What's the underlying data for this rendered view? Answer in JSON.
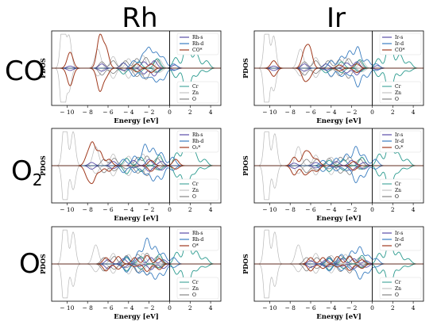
{
  "column_titles": [
    "Rh",
    "Ir"
  ],
  "row_titles": [
    {
      "main": "CO",
      "sub": ""
    },
    {
      "main": "O",
      "sub": "2"
    },
    {
      "main": "O",
      "sub": ""
    }
  ],
  "colors": {
    "metal_s": "#5a4ea8",
    "metal_d": "#3a7dc0",
    "adsorbate": "#a03a1e",
    "cr": "#2a9a8e",
    "zn": "#b8b8b8",
    "o": "#6e6e6e",
    "fermi": "#000000"
  },
  "chart_data": [
    {
      "type": "line",
      "panel": "Rh-CO",
      "xlabel": "Energy [eV]",
      "ylabel": "PDOS",
      "xlim": [
        -11.5,
        5
      ],
      "xticks": [
        -10,
        -8,
        -6,
        -4,
        -2,
        0,
        2,
        4
      ],
      "legend_top": [
        "Rh-s",
        "Rh-d",
        "CO*"
      ],
      "legend_bottom": [
        "Cr",
        "Zn",
        "O"
      ],
      "legend_top_pos": "top-right",
      "legend_bottom_pos": "bottom-right",
      "fermi_level": 0,
      "peaks": {
        "metal_s": [
          [
            -9.7,
            0.1
          ],
          [
            -6.6,
            0.2
          ],
          [
            -4.5,
            0.25
          ],
          [
            -2.5,
            0.3
          ],
          [
            -1.5,
            0.35
          ],
          [
            0.5,
            0.15
          ]
        ],
        "metal_d": [
          [
            -3.5,
            0.35
          ],
          [
            -2.6,
            0.6
          ],
          [
            -2.0,
            0.9
          ],
          [
            -1.3,
            0.7
          ],
          [
            -0.6,
            0.5
          ],
          [
            0.4,
            0.2
          ]
        ],
        "adsorbate": [
          [
            -9.7,
            0.75
          ],
          [
            -6.8,
            1.5
          ],
          [
            -6.2,
            0.9
          ],
          [
            -3.2,
            0.2
          ],
          [
            -1.8,
            0.2
          ]
        ],
        "cr": [
          [
            -4.5,
            0.25
          ],
          [
            -3.0,
            0.3
          ],
          [
            -1.2,
            0.45
          ],
          [
            0.6,
            0.5
          ],
          [
            1.7,
            1.35
          ],
          [
            2.6,
            0.7
          ],
          [
            3.6,
            0.35
          ]
        ],
        "zn": [
          [
            -10.4,
            2.5
          ],
          [
            -9.8,
            1.5
          ],
          [
            -7.0,
            0.9
          ],
          [
            -5.5,
            0.55
          ],
          [
            -4.0,
            0.45
          ],
          [
            -2.6,
            0.6
          ],
          [
            -1.0,
            0.4
          ]
        ],
        "o": [
          [
            -6.6,
            0.3
          ],
          [
            -5.5,
            0.35
          ],
          [
            -4.3,
            0.35
          ],
          [
            -3.2,
            0.45
          ],
          [
            -2.3,
            0.5
          ],
          [
            -1.3,
            0.4
          ]
        ]
      }
    },
    {
      "type": "line",
      "panel": "Ir-CO",
      "xlabel": "Energy [eV]",
      "ylabel": "PDOS",
      "xlim": [
        -11.5,
        5
      ],
      "xticks": [
        -10,
        -8,
        -6,
        -4,
        -2,
        0,
        2,
        4
      ],
      "legend_top": [
        "Ir-s",
        "Ir-d",
        "CO*"
      ],
      "legend_bottom": [
        "Cr",
        "Zn",
        "O"
      ],
      "legend_top_pos": "top-right",
      "legend_bottom_pos": "bottom-right",
      "fermi_level": 0,
      "peaks": {
        "metal_s": [
          [
            -9.6,
            0.1
          ],
          [
            -6.6,
            0.2
          ],
          [
            -4.5,
            0.2
          ],
          [
            -2.5,
            0.25
          ],
          [
            -1.5,
            0.3
          ],
          [
            0.5,
            0.12
          ]
        ],
        "metal_d": [
          [
            -4.0,
            0.35
          ],
          [
            -3.0,
            0.55
          ],
          [
            -2.2,
            0.8
          ],
          [
            -1.4,
            1.0
          ],
          [
            -0.5,
            0.4
          ],
          [
            0.4,
            0.2
          ]
        ],
        "adsorbate": [
          [
            -9.6,
            0.35
          ],
          [
            -6.6,
            0.75
          ],
          [
            -6.1,
            0.9
          ],
          [
            -3.2,
            0.15
          ],
          [
            -1.5,
            0.2
          ]
        ],
        "cr": [
          [
            -4.5,
            0.2
          ],
          [
            -3.0,
            0.3
          ],
          [
            -1.2,
            0.4
          ],
          [
            0.6,
            0.45
          ],
          [
            1.7,
            1.45
          ],
          [
            2.7,
            0.65
          ],
          [
            3.6,
            0.3
          ]
        ],
        "zn": [
          [
            -10.3,
            2.5
          ],
          [
            -9.6,
            1.5
          ],
          [
            -7.0,
            0.9
          ],
          [
            -5.5,
            0.5
          ],
          [
            -4.0,
            0.4
          ],
          [
            -2.6,
            0.5
          ],
          [
            -1.0,
            0.35
          ]
        ],
        "o": [
          [
            -6.6,
            0.3
          ],
          [
            -5.5,
            0.35
          ],
          [
            -4.3,
            0.35
          ],
          [
            -3.2,
            0.4
          ],
          [
            -2.3,
            0.45
          ],
          [
            -1.3,
            0.35
          ]
        ]
      }
    },
    {
      "type": "line",
      "panel": "Rh-O2",
      "xlabel": "Energy [eV]",
      "ylabel": "PDOS",
      "xlim": [
        -11.5,
        5
      ],
      "xticks": [
        -10,
        -8,
        -6,
        -4,
        -2,
        0,
        2,
        4
      ],
      "legend_top": [
        "Rh-s",
        "Rh-d",
        "O₂*"
      ],
      "legend_bottom": [
        "Cr",
        "Zn",
        "O"
      ],
      "legend_top_pos": "top-right",
      "legend_bottom_pos": "bottom-right",
      "fermi_level": 0,
      "peaks": {
        "metal_s": [
          [
            -7.6,
            0.15
          ],
          [
            -5.5,
            0.2
          ],
          [
            -3.5,
            0.25
          ],
          [
            -2.0,
            0.3
          ],
          [
            -0.8,
            0.2
          ]
        ],
        "metal_d": [
          [
            -4.5,
            0.3
          ],
          [
            -3.4,
            0.45
          ],
          [
            -2.4,
            1.0
          ],
          [
            -1.6,
            0.8
          ],
          [
            -0.8,
            0.6
          ],
          [
            0.3,
            0.4
          ]
        ],
        "adsorbate": [
          [
            -8.0,
            0.45
          ],
          [
            -7.5,
            1.0
          ],
          [
            -6.8,
            0.65
          ],
          [
            -5.9,
            0.3
          ],
          [
            -1.8,
            0.25
          ],
          [
            0.6,
            0.3
          ]
        ],
        "cr": [
          [
            -4.2,
            0.35
          ],
          [
            -2.8,
            0.4
          ],
          [
            -1.0,
            0.5
          ],
          [
            0.7,
            0.6
          ],
          [
            1.6,
            1.2
          ],
          [
            2.4,
            0.7
          ],
          [
            3.4,
            0.3
          ]
        ],
        "zn": [
          [
            -10.2,
            2.5
          ],
          [
            -9.4,
            1.6
          ],
          [
            -7.2,
            0.9
          ],
          [
            -5.5,
            0.55
          ],
          [
            -4.0,
            0.45
          ],
          [
            -2.6,
            0.55
          ],
          [
            -1.0,
            0.4
          ]
        ],
        "o": [
          [
            -6.4,
            0.3
          ],
          [
            -5.4,
            0.35
          ],
          [
            -4.2,
            0.35
          ],
          [
            -3.1,
            0.4
          ],
          [
            -2.2,
            0.45
          ],
          [
            -1.2,
            0.35
          ]
        ]
      }
    },
    {
      "type": "line",
      "panel": "Ir-O2",
      "xlabel": "Energy [eV]",
      "ylabel": "PDOS",
      "xlim": [
        -11.5,
        5
      ],
      "xticks": [
        -10,
        -8,
        -6,
        -4,
        -2,
        0,
        2,
        4
      ],
      "legend_top": [
        "Ir-s",
        "Ir-d",
        "O₂*"
      ],
      "legend_bottom": [
        "Cr",
        "Zn",
        "O"
      ],
      "legend_top_pos": "top-right",
      "legend_bottom_pos": "bottom-right",
      "fermi_level": 0,
      "peaks": {
        "metal_s": [
          [
            -7.6,
            0.12
          ],
          [
            -5.5,
            0.15
          ],
          [
            -3.5,
            0.2
          ],
          [
            -2.0,
            0.25
          ],
          [
            -0.8,
            0.15
          ]
        ],
        "metal_d": [
          [
            -4.8,
            0.25
          ],
          [
            -3.5,
            0.35
          ],
          [
            -2.5,
            0.55
          ],
          [
            -1.6,
            0.9
          ],
          [
            -0.8,
            0.5
          ],
          [
            0.3,
            0.3
          ]
        ],
        "adsorbate": [
          [
            -7.6,
            0.4
          ],
          [
            -6.6,
            0.55
          ],
          [
            -6.1,
            0.5
          ],
          [
            -5.4,
            0.3
          ],
          [
            -1.8,
            0.2
          ]
        ],
        "cr": [
          [
            -4.2,
            0.25
          ],
          [
            -2.8,
            0.3
          ],
          [
            -1.0,
            0.4
          ],
          [
            0.7,
            0.55
          ],
          [
            1.7,
            1.25
          ],
          [
            2.5,
            0.6
          ],
          [
            3.4,
            0.3
          ]
        ],
        "zn": [
          [
            -10.3,
            2.5
          ],
          [
            -9.5,
            1.5
          ],
          [
            -7.2,
            0.9
          ],
          [
            -5.5,
            0.5
          ],
          [
            -4.0,
            0.4
          ],
          [
            -2.6,
            0.5
          ],
          [
            -1.0,
            0.35
          ]
        ],
        "o": [
          [
            -6.4,
            0.3
          ],
          [
            -5.4,
            0.3
          ],
          [
            -4.2,
            0.35
          ],
          [
            -3.1,
            0.4
          ],
          [
            -2.2,
            0.4
          ],
          [
            -1.2,
            0.3
          ]
        ]
      }
    },
    {
      "type": "line",
      "panel": "Rh-O",
      "xlabel": "Energy [eV]",
      "ylabel": "PDOS",
      "xlim": [
        -11.5,
        5
      ],
      "xticks": [
        -10,
        -8,
        -6,
        -4,
        -2,
        0,
        2,
        4
      ],
      "legend_top": [
        "Rh-s",
        "Rh-d",
        "O*"
      ],
      "legend_bottom": [
        "Cr",
        "Zn",
        "O"
      ],
      "legend_top_pos": "top-right",
      "legend_bottom_pos": "bottom-right",
      "fermi_level": 0,
      "peaks": {
        "metal_s": [
          [
            -6.0,
            0.2
          ],
          [
            -4.5,
            0.25
          ],
          [
            -3.0,
            0.3
          ],
          [
            -1.8,
            0.3
          ],
          [
            -0.6,
            0.2
          ]
        ],
        "metal_d": [
          [
            -4.2,
            0.35
          ],
          [
            -3.0,
            0.6
          ],
          [
            -2.2,
            1.2
          ],
          [
            -1.4,
            0.8
          ],
          [
            -0.6,
            0.5
          ],
          [
            0.4,
            0.3
          ]
        ],
        "adsorbate": [
          [
            -6.2,
            0.3
          ],
          [
            -5.0,
            0.35
          ],
          [
            -3.4,
            0.3
          ],
          [
            -2.2,
            0.4
          ],
          [
            -1.0,
            0.25
          ]
        ],
        "cr": [
          [
            -4.2,
            0.3
          ],
          [
            -2.8,
            0.35
          ],
          [
            -1.0,
            0.45
          ],
          [
            0.7,
            0.55
          ],
          [
            1.7,
            1.3
          ],
          [
            2.6,
            0.6
          ],
          [
            3.5,
            0.3
          ]
        ],
        "zn": [
          [
            -10.2,
            2.5
          ],
          [
            -9.4,
            1.5
          ],
          [
            -7.2,
            0.9
          ],
          [
            -5.5,
            0.5
          ],
          [
            -4.0,
            0.45
          ],
          [
            -2.6,
            0.5
          ],
          [
            -1.0,
            0.35
          ]
        ],
        "o": [
          [
            -6.4,
            0.3
          ],
          [
            -5.4,
            0.35
          ],
          [
            -4.2,
            0.4
          ],
          [
            -3.1,
            0.45
          ],
          [
            -2.2,
            0.5
          ],
          [
            -1.2,
            0.35
          ]
        ]
      }
    },
    {
      "type": "line",
      "panel": "Ir-O",
      "xlabel": "Energy [eV]",
      "ylabel": "PDOS",
      "xlim": [
        -11.5,
        5
      ],
      "xticks": [
        -10,
        -8,
        -6,
        -4,
        -2,
        0,
        2,
        4
      ],
      "legend_top": [
        "Ir-s",
        "Ir-d",
        "O*"
      ],
      "legend_bottom": [
        "Cr",
        "Zn",
        "O"
      ],
      "legend_top_pos": "top-right",
      "legend_bottom_pos": "bottom-right",
      "fermi_level": 0,
      "peaks": {
        "metal_s": [
          [
            -6.0,
            0.15
          ],
          [
            -4.5,
            0.2
          ],
          [
            -3.0,
            0.25
          ],
          [
            -1.8,
            0.25
          ],
          [
            -0.6,
            0.15
          ]
        ],
        "metal_d": [
          [
            -4.2,
            0.3
          ],
          [
            -3.0,
            0.45
          ],
          [
            -2.0,
            0.6
          ],
          [
            -1.2,
            0.8
          ],
          [
            -0.4,
            0.4
          ],
          [
            0.4,
            0.25
          ]
        ],
        "adsorbate": [
          [
            -6.0,
            0.3
          ],
          [
            -4.8,
            0.3
          ],
          [
            -3.4,
            0.35
          ],
          [
            -2.2,
            0.35
          ],
          [
            -1.0,
            0.2
          ]
        ],
        "cr": [
          [
            -4.2,
            0.25
          ],
          [
            -2.8,
            0.3
          ],
          [
            -1.0,
            0.4
          ],
          [
            0.7,
            0.5
          ],
          [
            1.7,
            1.2
          ],
          [
            2.6,
            0.55
          ],
          [
            3.5,
            0.25
          ]
        ],
        "zn": [
          [
            -10.3,
            2.5
          ],
          [
            -9.5,
            1.5
          ],
          [
            -7.2,
            0.9
          ],
          [
            -5.5,
            0.5
          ],
          [
            -4.0,
            0.4
          ],
          [
            -2.6,
            0.45
          ],
          [
            -1.0,
            0.3
          ]
        ],
        "o": [
          [
            -6.4,
            0.3
          ],
          [
            -5.4,
            0.3
          ],
          [
            -4.2,
            0.35
          ],
          [
            -3.1,
            0.4
          ],
          [
            -2.2,
            0.4
          ],
          [
            -1.2,
            0.3
          ]
        ]
      }
    }
  ]
}
